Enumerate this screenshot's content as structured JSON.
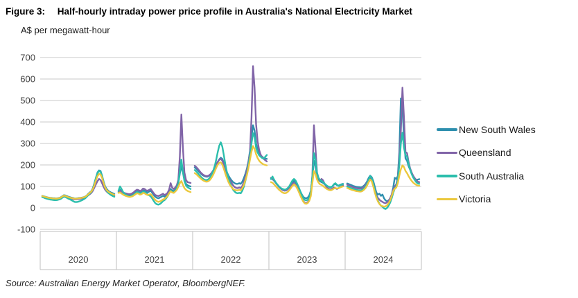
{
  "figure": {
    "label": "Figure 3:",
    "title": "Half-hourly intraday power price profile in Australia's National Electricity Market",
    "unit_label": "A$ per megawatt-hour",
    "source": "Source: Australian Energy Market Operator, BloombergNEF."
  },
  "chart_data": {
    "type": "line",
    "title": "Half-hourly intraday power price profile in Australia's National Electricity Market",
    "ylabel": "A$ per megawatt-hour",
    "ylim": [
      -100,
      700
    ],
    "yticks": [
      700,
      600,
      500,
      400,
      300,
      200,
      100,
      0,
      -100
    ],
    "grid": "horizontal",
    "legend_position": "right",
    "x_structure": "5 year panels, each holding 48 half-hourly intraday average prices (00:00-23:30)",
    "categories": [
      "2020",
      "2021",
      "2022",
      "2023",
      "2024"
    ],
    "points_per_panel": 48,
    "grid_color": "#C9C9C9",
    "axis_color": "#BFBFBF",
    "tick_label_color": "#404040",
    "series": [
      {
        "name": "New South Wales",
        "color": "#2E8FAE",
        "values_by_year": {
          "2020": [
            56,
            54,
            52,
            50,
            48,
            47,
            46,
            45,
            45,
            44,
            45,
            46,
            49,
            54,
            59,
            58,
            55,
            52,
            50,
            48,
            46,
            44,
            44,
            45,
            46,
            47,
            48,
            50,
            53,
            58,
            66,
            72,
            78,
            92,
            115,
            140,
            165,
            175,
            172,
            150,
            122,
            100,
            88,
            80,
            75,
            71,
            68,
            65
          ],
          "2021": [
            74,
            84,
            78,
            70,
            66,
            63,
            61,
            59,
            60,
            63,
            67,
            73,
            78,
            76,
            72,
            75,
            82,
            80,
            75,
            72,
            76,
            80,
            70,
            60,
            52,
            47,
            45,
            48,
            52,
            56,
            52,
            56,
            62,
            76,
            88,
            82,
            78,
            85,
            95,
            115,
            160,
            195,
            165,
            130,
            112,
            105,
            102,
            100
          ],
          "2022": [
            188,
            182,
            175,
            167,
            159,
            153,
            149,
            146,
            145,
            148,
            153,
            161,
            172,
            186,
            200,
            214,
            226,
            234,
            228,
            208,
            185,
            165,
            150,
            138,
            128,
            120,
            115,
            112,
            112,
            115,
            112,
            122,
            138,
            158,
            182,
            215,
            265,
            330,
            385,
            360,
            300,
            272,
            255,
            245,
            238,
            232,
            230,
            228
          ],
          "2023": [
            138,
            134,
            127,
            118,
            109,
            101,
            94,
            89,
            85,
            83,
            85,
            90,
            98,
            108,
            118,
            126,
            120,
            108,
            94,
            78,
            64,
            52,
            46,
            45,
            48,
            58,
            80,
            140,
            220,
            195,
            150,
            132,
            124,
            120,
            116,
            110,
            104,
            100,
            98,
            97,
            100,
            108,
            112,
            106,
            104,
            107,
            110,
            112
          ],
          "2024": [
            114,
            111,
            108,
            105,
            102,
            100,
            98,
            97,
            96,
            95,
            98,
            104,
            112,
            124,
            140,
            150,
            143,
            125,
            98,
            72,
            62,
            66,
            56,
            62,
            45,
            35,
            32,
            35,
            45,
            62,
            95,
            140,
            135,
            148,
            260,
            510,
            480,
            320,
            230,
            220,
            195,
            178,
            160,
            148,
            138,
            130,
            132,
            134
          ]
        }
      },
      {
        "name": "Queensland",
        "color": "#8165A8",
        "values_by_year": {
          "2020": [
            53,
            51,
            49,
            47,
            45,
            44,
            43,
            42,
            42,
            41,
            42,
            43,
            46,
            50,
            55,
            54,
            51,
            48,
            46,
            44,
            42,
            40,
            40,
            41,
            42,
            43,
            44,
            46,
            49,
            53,
            59,
            64,
            70,
            80,
            95,
            110,
            125,
            135,
            130,
            115,
            98,
            85,
            76,
            70,
            66,
            62,
            59,
            57
          ],
          "2021": [
            78,
            80,
            76,
            72,
            69,
            67,
            65,
            64,
            65,
            68,
            73,
            80,
            85,
            83,
            78,
            82,
            90,
            88,
            82,
            80,
            84,
            88,
            78,
            68,
            60,
            57,
            55,
            58,
            62,
            66,
            60,
            64,
            70,
            85,
            115,
            95,
            88,
            95,
            105,
            130,
            240,
            435,
            280,
            165,
            130,
            120,
            118,
            116
          ],
          "2022": [
            196,
            190,
            182,
            173,
            164,
            157,
            152,
            149,
            148,
            150,
            155,
            163,
            174,
            188,
            202,
            215,
            224,
            228,
            220,
            200,
            178,
            158,
            142,
            128,
            116,
            105,
            97,
            93,
            92,
            95,
            92,
            102,
            118,
            145,
            175,
            210,
            260,
            420,
            660,
            560,
            390,
            310,
            270,
            248,
            235,
            228,
            222,
            216
          ],
          "2023": [
            140,
            136,
            128,
            118,
            108,
            99,
            92,
            86,
            82,
            80,
            82,
            87,
            95,
            105,
            113,
            116,
            108,
            96,
            80,
            62,
            45,
            32,
            24,
            22,
            26,
            40,
            70,
            150,
            385,
            280,
            165,
            138,
            128,
            135,
            128,
            112,
            100,
            92,
            88,
            86,
            90,
            95,
            92,
            88,
            92,
            96,
            100,
            104
          ],
          "2024": [
            108,
            105,
            102,
            99,
            96,
            94,
            92,
            91,
            90,
            90,
            93,
            99,
            107,
            119,
            133,
            140,
            131,
            110,
            85,
            60,
            46,
            38,
            32,
            28,
            24,
            22,
            26,
            33,
            45,
            62,
            85,
            100,
            110,
            140,
            230,
            360,
            560,
            420,
            260,
            255,
            215,
            185,
            165,
            150,
            138,
            128,
            122,
            120
          ]
        }
      },
      {
        "name": "South Australia",
        "color": "#2BBEAC",
        "values_by_year": {
          "2020": [
            50,
            48,
            45,
            43,
            41,
            39,
            38,
            37,
            36,
            36,
            37,
            39,
            42,
            47,
            52,
            51,
            47,
            43,
            40,
            36,
            32,
            28,
            27,
            28,
            30,
            33,
            36,
            40,
            45,
            52,
            60,
            67,
            74,
            88,
            112,
            140,
            162,
            172,
            168,
            148,
            118,
            95,
            80,
            70,
            64,
            59,
            55,
            52
          ],
          "2021": [
            80,
            100,
            88,
            74,
            66,
            60,
            56,
            53,
            54,
            57,
            62,
            68,
            74,
            72,
            68,
            70,
            76,
            74,
            68,
            62,
            58,
            54,
            44,
            32,
            22,
            17,
            15,
            18,
            24,
            32,
            36,
            44,
            54,
            68,
            80,
            74,
            72,
            80,
            92,
            115,
            170,
            225,
            170,
            125,
            105,
            96,
            92,
            88
          ],
          "2022": [
            176,
            170,
            162,
            153,
            145,
            138,
            133,
            130,
            130,
            134,
            142,
            155,
            172,
            195,
            225,
            260,
            290,
            305,
            285,
            245,
            200,
            165,
            138,
            115,
            98,
            85,
            76,
            70,
            68,
            70,
            68,
            80,
            98,
            125,
            155,
            195,
            245,
            300,
            348,
            330,
            280,
            258,
            245,
            238,
            232,
            230,
            238,
            246
          ],
          "2023": [
            134,
            146,
            132,
            120,
            110,
            102,
            95,
            90,
            87,
            85,
            87,
            93,
            102,
            115,
            128,
            135,
            128,
            114,
            98,
            80,
            62,
            46,
            37,
            35,
            38,
            48,
            72,
            145,
            255,
            225,
            162,
            140,
            130,
            126,
            120,
            113,
            106,
            101,
            98,
            96,
            100,
            110,
            115,
            108,
            102,
            105,
            108,
            110
          ],
          "2024": [
            100,
            97,
            94,
            91,
            88,
            86,
            84,
            83,
            82,
            82,
            85,
            91,
            100,
            114,
            132,
            148,
            138,
            112,
            82,
            54,
            34,
            20,
            10,
            5,
            -2,
            -5,
            0,
            10,
            25,
            45,
            70,
            90,
            100,
            130,
            200,
            300,
            350,
            280,
            245,
            240,
            205,
            180,
            158,
            142,
            130,
            120,
            114,
            112
          ]
        }
      },
      {
        "name": "Victoria",
        "color": "#EBC83D",
        "values_by_year": {
          "2020": [
            55,
            53,
            51,
            49,
            47,
            46,
            45,
            44,
            44,
            43,
            44,
            45,
            48,
            53,
            57,
            56,
            53,
            50,
            48,
            46,
            45,
            43,
            43,
            44,
            45,
            46,
            47,
            49,
            52,
            57,
            64,
            70,
            76,
            88,
            105,
            128,
            148,
            158,
            155,
            140,
            115,
            95,
            83,
            76,
            71,
            67,
            64,
            61
          ],
          "2021": [
            70,
            72,
            67,
            62,
            58,
            55,
            53,
            51,
            52,
            54,
            58,
            63,
            68,
            66,
            62,
            64,
            70,
            68,
            63,
            60,
            62,
            64,
            55,
            45,
            37,
            31,
            28,
            30,
            34,
            39,
            42,
            48,
            56,
            68,
            78,
            72,
            70,
            76,
            84,
            98,
            115,
            125,
            108,
            92,
            84,
            79,
            76,
            74
          ],
          "2022": [
            162,
            157,
            150,
            143,
            136,
            130,
            126,
            123,
            122,
            125,
            131,
            141,
            154,
            170,
            187,
            202,
            210,
            212,
            202,
            182,
            158,
            138,
            120,
            106,
            96,
            88,
            84,
            82,
            82,
            84,
            82,
            92,
            106,
            128,
            152,
            185,
            225,
            262,
            288,
            275,
            250,
            232,
            220,
            212,
            206,
            202,
            200,
            198
          ],
          "2023": [
            120,
            117,
            110,
            102,
            94,
            86,
            80,
            74,
            70,
            68,
            70,
            75,
            83,
            93,
            103,
            110,
            104,
            92,
            77,
            60,
            44,
            30,
            21,
            19,
            23,
            33,
            55,
            115,
            172,
            158,
            132,
            118,
            110,
            107,
            102,
            96,
            90,
            86,
            83,
            82,
            85,
            90,
            93,
            90,
            92,
            95,
            98,
            100
          ],
          "2024": [
            93,
            90,
            87,
            84,
            82,
            80,
            78,
            77,
            76,
            76,
            79,
            85,
            93,
            105,
            120,
            132,
            124,
            100,
            72,
            48,
            30,
            18,
            11,
            8,
            6,
            7,
            12,
            22,
            36,
            55,
            78,
            90,
            95,
            115,
            150,
            180,
            198,
            190,
            172,
            162,
            148,
            136,
            126,
            118,
            112,
            107,
            104,
            103
          ]
        }
      }
    ]
  }
}
